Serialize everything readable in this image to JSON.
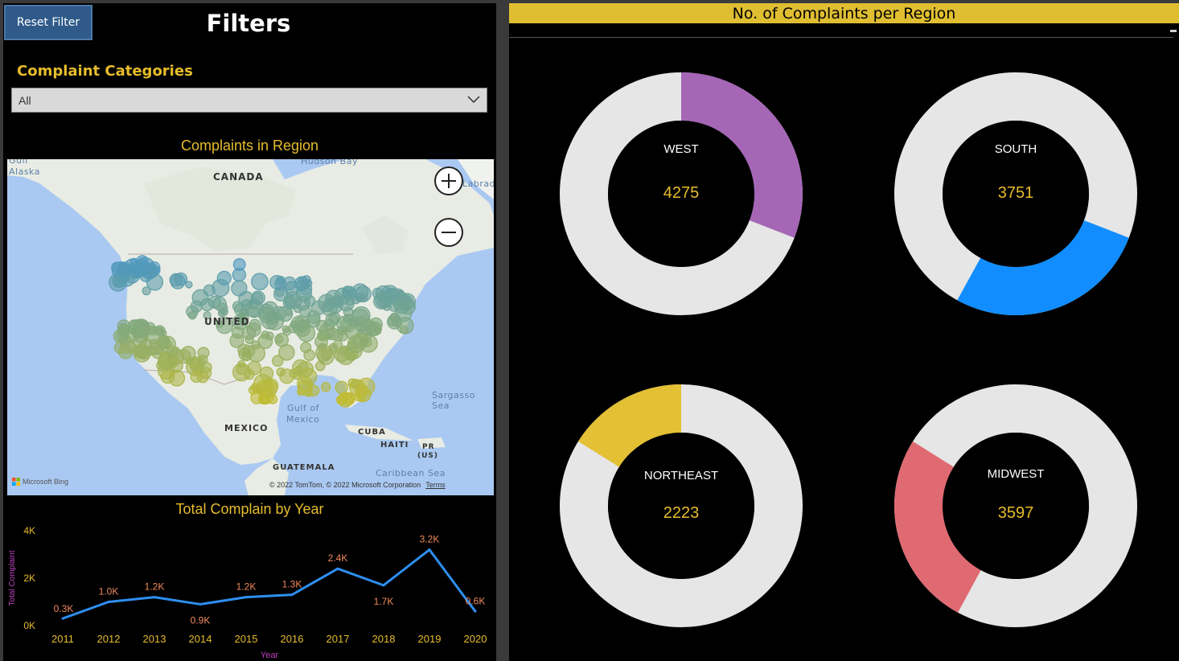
{
  "filters": {
    "reset_label": "Reset Filter",
    "title": "Filters",
    "category_label": "Complaint Categories",
    "category_value": "All"
  },
  "map": {
    "title": "Complaints in Region",
    "labels": {
      "canada": "CANADA",
      "united_states": "UNITED",
      "mexico": "MEXICO",
      "cuba": "CUBA",
      "haiti": "HAITI",
      "pr": "PR",
      "us": "(US)",
      "guatemala": "GUATEMALA",
      "hudson_bay": "Hudson Bay",
      "gulf_alaska": "Gulf",
      "alaska": "Alaska",
      "labrador": "Labrad",
      "gulf_of_mexico": "Gulf of",
      "gulf_of_mexico2": "Mexico",
      "sargasso": "Sargasso Sea",
      "caribbean": "Caribbean Sea"
    },
    "attribution": "Microsoft Bing",
    "copyright": "© 2022 TomTom, © 2022 Microsoft Corporation",
    "terms": "Terms",
    "zoom_in": "+",
    "zoom_out": "−"
  },
  "line_chart": {
    "title": "Total Complain by Year",
    "chart_data": {
      "type": "line",
      "x": [
        "2011",
        "2012",
        "2013",
        "2014",
        "2015",
        "2016",
        "2017",
        "2018",
        "2019",
        "2020"
      ],
      "values": [
        300,
        1000,
        1200,
        900,
        1200,
        1300,
        2400,
        1700,
        3200,
        600
      ],
      "data_labels": [
        "0.3K",
        "1.0K",
        "1.2K",
        "0.9K",
        "1.2K",
        "1.3K",
        "2.4K",
        "1.7K",
        "3.2K",
        "0.6K"
      ],
      "xlabel": "Year",
      "ylabel": "Total Complaint",
      "yticks": [
        "0K",
        "2K",
        "4K"
      ],
      "ylim": [
        0,
        4000
      ],
      "line_color": "#2e8ff0"
    }
  },
  "regions": {
    "title": "No. of Complaints per Region",
    "chart_data": [
      {
        "type": "pie",
        "name": "WEST",
        "value": "4275",
        "fraction": 0.309,
        "start": 0,
        "color": "#a566b6"
      },
      {
        "type": "pie",
        "name": "SOUTH",
        "value": "3751",
        "fraction": 0.271,
        "start": 0.309,
        "color": "#118dff"
      },
      {
        "type": "pie",
        "name": "NORTHEAST",
        "value": "2223",
        "fraction": 0.161,
        "start": 0.839,
        "color": "#e3c034"
      },
      {
        "type": "pie",
        "name": "MIDWEST",
        "value": "3597",
        "fraction": 0.26,
        "start": 0.579,
        "color": "#e06a71"
      }
    ]
  }
}
